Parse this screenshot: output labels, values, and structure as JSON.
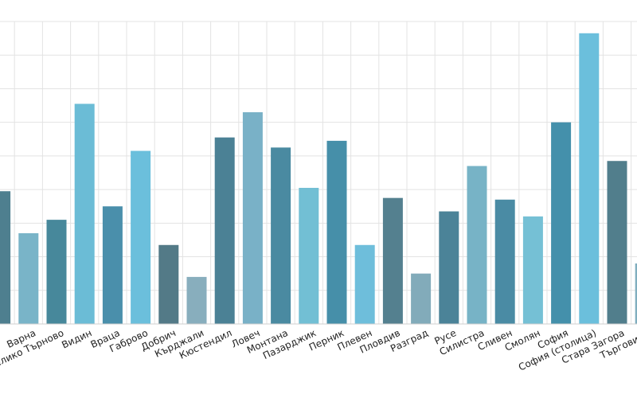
{
  "chart_data": {
    "type": "bar",
    "title": "",
    "xlabel": "",
    "ylabel": "",
    "grid": true,
    "ylim": [
      0,
      900
    ],
    "categories": [
      "",
      "Варна",
      "Велико Търново",
      "Видин",
      "Враца",
      "Габрово",
      "Добрич",
      "Кърджали",
      "Кюстендил",
      "Ловеч",
      "Монтана",
      "Пазарджик",
      "Перник",
      "Плевен",
      "Пловдив",
      "Разград",
      "Русе",
      "Силистра",
      "Сливен",
      "Смолян",
      "София",
      "София (столица)",
      "Стара Загора",
      "Търговище"
    ],
    "values": [
      395,
      270,
      310,
      655,
      350,
      515,
      235,
      140,
      555,
      630,
      525,
      405,
      545,
      235,
      375,
      150,
      335,
      470,
      370,
      320,
      600,
      865,
      485,
      180
    ],
    "colors": [
      "#4e7f8f",
      "#79b4c8",
      "#47889b",
      "#6bbcd6",
      "#4a8fab",
      "#6bbfdc",
      "#537a87",
      "#88aebd",
      "#4b8195",
      "#79b1c7",
      "#4a8aa1",
      "#72bfd4",
      "#468fa9",
      "#6ebedb",
      "#54808f",
      "#82abba",
      "#4b8398",
      "#77b3c6",
      "#4a8ba4",
      "#75c0d5",
      "#4490ab",
      "#6bbfdc",
      "#517e8c",
      "#80aebe"
    ]
  }
}
